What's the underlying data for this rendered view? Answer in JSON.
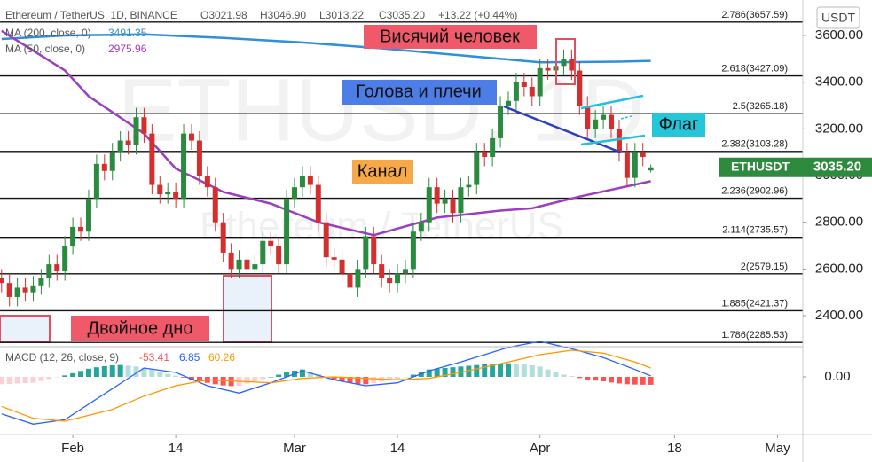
{
  "chart_data": [
    {
      "type": "candlestick",
      "title": "Ethereum / TetherUS, 1D, BINANCE",
      "ohlc_labels": [
        "O3021.98",
        "H3046.90",
        "L3013.22",
        "C3035.20"
      ],
      "change_label": "+13.22 (+0.44%)",
      "watermark": "ETHUSD, 1D",
      "watermark_subtitle": "Ethereum / TetherUS",
      "currency": "USDT",
      "price_tag": {
        "symbol": "ETHUSDT",
        "label": "3035.20",
        "color": "#2e8b3e"
      },
      "annotations": [
        "Висячий человек",
        "Голова и плечи",
        "Канал",
        "Флаг",
        "Двойное дно"
      ],
      "up_color": "#2a8a3e",
      "down_color": "#d32f2f",
      "xlim": [
        21.8,
        123.2
      ],
      "xticks": [
        {
          "value": 31,
          "label": "Feb"
        },
        {
          "value": 44,
          "label": "14"
        },
        {
          "value": 59,
          "label": "Mar"
        },
        {
          "value": 72,
          "label": "14"
        },
        {
          "value": 90,
          "label": "Apr"
        },
        {
          "value": 107,
          "label": "18"
        },
        {
          "value": 120,
          "label": "May"
        }
      ],
      "ylim": [
        2271,
        3752
      ],
      "yticks": [
        {
          "value": 2400,
          "label": "2400.00"
        },
        {
          "value": 2600,
          "label": "2600.00"
        },
        {
          "value": 2800,
          "label": "2800.00"
        },
        {
          "value": 3000,
          "label": "3000.00"
        },
        {
          "value": 3200,
          "label": "3200.00"
        },
        {
          "value": 3400,
          "label": "3400.00"
        },
        {
          "value": 3600,
          "label": "3600.00"
        }
      ],
      "fib_levels": [
        {
          "value": 3657.59,
          "label": "2.786(3657.59)"
        },
        {
          "value": 3427.09,
          "label": "2.618(3427.09)"
        },
        {
          "value": 3265.18,
          "label": "2.5(3265.18)"
        },
        {
          "value": 3103.28,
          "label": "2.382(3103.28)"
        },
        {
          "value": 2902.96,
          "label": "2.236(2902.96)"
        },
        {
          "value": 2735.57,
          "label": "2.114(2735.57)"
        },
        {
          "value": 2579.15,
          "label": "2(2579.15)"
        },
        {
          "value": 2421.37,
          "label": "1.885(2421.37)"
        },
        {
          "value": 2285.53,
          "label": "1.786(2285.53)"
        }
      ],
      "x": [
        22,
        23,
        24,
        25,
        26,
        27,
        28,
        29,
        30,
        31,
        32,
        33,
        34,
        35,
        36,
        37,
        38,
        39,
        40,
        41,
        42,
        43,
        44,
        45,
        46,
        47,
        48,
        49,
        50,
        51,
        52,
        53,
        54,
        55,
        56,
        57,
        58,
        59,
        60,
        61,
        62,
        63,
        64,
        65,
        66,
        67,
        68,
        69,
        70,
        71,
        72,
        73,
        74,
        75,
        76,
        77,
        78,
        79,
        80,
        81,
        82,
        83,
        84,
        85,
        86,
        87,
        88,
        89,
        90,
        91,
        92,
        93,
        94,
        95,
        96,
        97,
        98,
        99,
        100,
        101,
        102,
        103,
        104
      ],
      "open": [
        2560,
        2540,
        2480,
        2520,
        2500,
        2530,
        2560,
        2620,
        2590,
        2700,
        2780,
        2760,
        2900,
        3050,
        3020,
        3100,
        3150,
        3130,
        3250,
        3180,
        2960,
        2920,
        2930,
        2900,
        3180,
        3150,
        3000,
        2950,
        2800,
        2670,
        2600,
        2640,
        2600,
        2620,
        2720,
        2700,
        2620,
        2900,
        2950,
        3000,
        2960,
        2800,
        2650,
        2640,
        2580,
        2520,
        2600,
        2740,
        2620,
        2560,
        2540,
        2580,
        2600,
        2760,
        2800,
        2950,
        2880,
        2900,
        2840,
        2950,
        2960,
        3100,
        3080,
        3160,
        3300,
        3320,
        3400,
        3380,
        3340,
        3460,
        3450,
        3470,
        3500,
        3450,
        3300,
        3200,
        3240,
        3260,
        3200,
        3100,
        2990,
        3100,
        3021.98
      ],
      "high": [
        2600,
        2580,
        2560,
        2560,
        2570,
        2600,
        2660,
        2660,
        2740,
        2820,
        2820,
        2940,
        3090,
        3090,
        3140,
        3190,
        3190,
        3290,
        3290,
        3220,
        3000,
        2970,
        2970,
        3220,
        3220,
        3190,
        3040,
        2990,
        2840,
        2710,
        2680,
        2680,
        2660,
        2760,
        2760,
        2740,
        2940,
        2990,
        3040,
        3040,
        3000,
        2840,
        2690,
        2680,
        2620,
        2640,
        2780,
        2780,
        2660,
        2600,
        2620,
        2640,
        2800,
        2840,
        2990,
        2990,
        2940,
        2940,
        2990,
        3000,
        3140,
        3140,
        3200,
        3340,
        3360,
        3440,
        3440,
        3420,
        3500,
        3500,
        3510,
        3540,
        3540,
        3490,
        3340,
        3280,
        3300,
        3300,
        3240,
        3140,
        3140,
        3140,
        3046.9
      ],
      "low": [
        2500,
        2440,
        2440,
        2460,
        2460,
        2490,
        2520,
        2550,
        2550,
        2660,
        2720,
        2720,
        2860,
        2980,
        2980,
        3060,
        3090,
        3090,
        3140,
        2920,
        2880,
        2880,
        2860,
        2860,
        3110,
        2960,
        2910,
        2760,
        2630,
        2560,
        2560,
        2560,
        2560,
        2580,
        2660,
        2580,
        2580,
        2860,
        2910,
        2920,
        2760,
        2610,
        2600,
        2540,
        2480,
        2480,
        2560,
        2580,
        2520,
        2500,
        2500,
        2540,
        2560,
        2720,
        2760,
        2840,
        2840,
        2800,
        2800,
        2910,
        2920,
        3040,
        3040,
        3120,
        3260,
        3280,
        3340,
        3300,
        3300,
        3410,
        3410,
        3430,
        3410,
        3260,
        3160,
        3160,
        3200,
        3160,
        3060,
        2950,
        2950,
        3040,
        3013.22
      ],
      "close": [
        2540,
        2480,
        2520,
        2500,
        2530,
        2560,
        2620,
        2590,
        2700,
        2780,
        2760,
        2900,
        3050,
        3020,
        3100,
        3150,
        3130,
        3250,
        3180,
        2960,
        2920,
        2930,
        2900,
        3180,
        3150,
        3000,
        2950,
        2800,
        2670,
        2600,
        2640,
        2600,
        2620,
        2720,
        2700,
        2620,
        2900,
        2950,
        3000,
        2960,
        2800,
        2650,
        2640,
        2580,
        2520,
        2600,
        2740,
        2620,
        2560,
        2540,
        2580,
        2600,
        2760,
        2800,
        2950,
        2880,
        2900,
        2840,
        2950,
        2960,
        3100,
        3080,
        3160,
        3300,
        3320,
        3400,
        3380,
        3340,
        3460,
        3450,
        3470,
        3500,
        3450,
        3300,
        3200,
        3240,
        3260,
        3200,
        3100,
        2990,
        3100,
        3080,
        3035.2
      ],
      "series": [
        {
          "name": "MA (200, close, 0)",
          "color": "#2f8fd8",
          "x": [
            22,
            30,
            40,
            50,
            60,
            70,
            80,
            90,
            100,
            104
          ],
          "values": [
            3585,
            3600,
            3605,
            3590,
            3570,
            3545,
            3515,
            3485,
            3488,
            3491.35
          ]
        },
        {
          "name": "MA (50, close, 0)",
          "color": "#9c3fbf",
          "x": [
            22,
            30,
            33,
            40,
            44,
            50,
            56,
            62,
            69,
            77,
            85,
            89,
            95,
            104
          ],
          "values": [
            3620,
            3450,
            3340,
            3180,
            3030,
            2930,
            2880,
            2800,
            2745,
            2820,
            2850,
            2860,
            2910,
            2975.96
          ]
        }
      ]
    },
    {
      "type": "macd",
      "title": "MACD (12, 26, close, 9)",
      "ylim": [
        -390,
        210
      ],
      "yticks": [
        {
          "value": 0,
          "label": "0.00"
        }
      ],
      "histogram": {
        "hist_colors": [
          "#26a69a",
          "#b2dfdb",
          "#ffcdd2",
          "#ff5252"
        ],
        "values": [
          -50,
          -48,
          -45,
          -42,
          -40,
          -28,
          -15,
          -3,
          10,
          25,
          40,
          55,
          65,
          72,
          78,
          80,
          76,
          70,
          62,
          50,
          36,
          20,
          8,
          -5,
          -18,
          -30,
          -40,
          -50,
          -58,
          -62,
          -60,
          -45,
          -30,
          -15,
          0,
          15,
          30,
          42,
          50,
          35,
          18,
          0,
          -20,
          -30,
          -40,
          -48,
          -50,
          -42,
          -33,
          -25,
          -20,
          -2,
          15,
          32,
          50,
          55,
          60,
          65,
          70,
          75,
          80,
          85,
          88,
          90,
          92,
          90,
          85,
          78,
          70,
          50,
          30,
          15,
          5,
          -8,
          -18,
          -25,
          -30,
          -38,
          -45,
          -50,
          -52,
          -53,
          -53.41
        ]
      },
      "series": [
        {
          "color": "#2962ff",
          "x": [
            22,
            26,
            30,
            36,
            40,
            44,
            48,
            52,
            56,
            60,
            64,
            68,
            72,
            76,
            80,
            86,
            90,
            94,
            98,
            102,
            104
          ],
          "values": [
            -250,
            -320,
            -290,
            -80,
            60,
            30,
            -60,
            -110,
            -40,
            40,
            -20,
            -60,
            -40,
            40,
            100,
            200,
            240,
            190,
            130,
            50,
            6.85
          ]
        },
        {
          "color": "#ff9800",
          "x": [
            22,
            26,
            30,
            36,
            40,
            44,
            48,
            52,
            56,
            60,
            64,
            68,
            72,
            76,
            80,
            86,
            90,
            94,
            98,
            102,
            104
          ],
          "values": [
            -200,
            -280,
            -300,
            -220,
            -130,
            -60,
            -20,
            -30,
            -40,
            -10,
            0,
            -10,
            -20,
            -10,
            30,
            100,
            150,
            180,
            160,
            100,
            60.26
          ]
        }
      ]
    }
  ]
}
